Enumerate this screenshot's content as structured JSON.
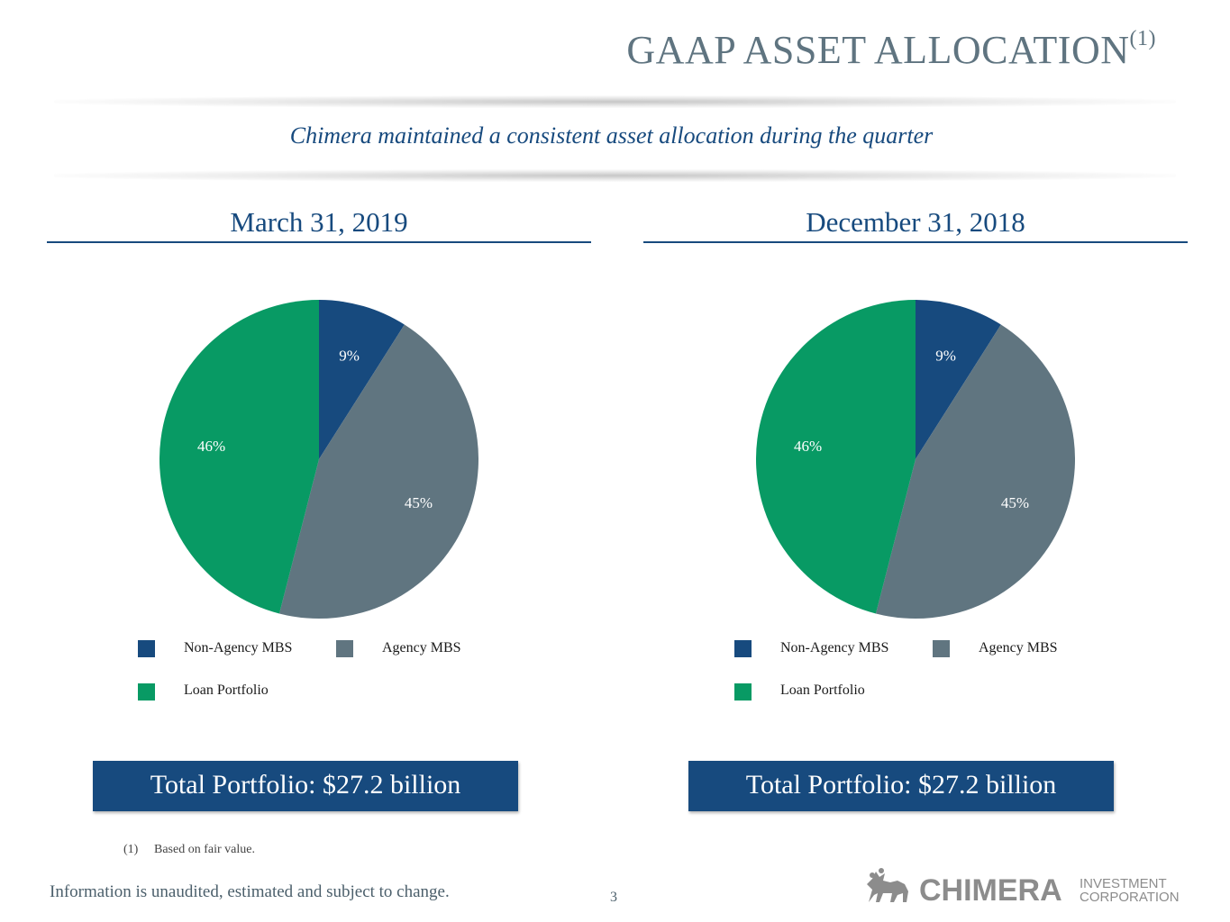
{
  "header": {
    "title": "GAAP ASSET ALLOCATION",
    "title_superscript": "(1)",
    "subtitle": "Chimera maintained a consistent asset allocation during the quarter"
  },
  "colors": {
    "non_agency_mbs": "#174a7e",
    "agency_mbs": "#607580",
    "loan_portfolio": "#089a64",
    "accent": "#174a7e"
  },
  "chart_data": [
    {
      "type": "pie",
      "title": "March 31, 2019",
      "categories": [
        "Non-Agency MBS",
        "Agency MBS",
        "Loan Portfolio"
      ],
      "values": [
        9,
        45,
        46
      ],
      "labels": [
        "9%",
        "45%",
        "46%"
      ],
      "legend_placement": "bottom",
      "total_label": "Total Portfolio: $27.2 billion"
    },
    {
      "type": "pie",
      "title": "December 31, 2018",
      "categories": [
        "Non-Agency MBS",
        "Agency MBS",
        "Loan Portfolio"
      ],
      "values": [
        9,
        45,
        46
      ],
      "labels": [
        "9%",
        "45%",
        "46%"
      ],
      "legend_placement": "bottom",
      "total_label": "Total Portfolio: $27.2 billion"
    }
  ],
  "footnote": {
    "number": "(1)",
    "text": "Based on fair value."
  },
  "footer": {
    "disclaimer": "Information is unaudited, estimated and subject to change.",
    "page_number": "3"
  },
  "logo": {
    "name": "CHIMERA",
    "line1": "INVESTMENT",
    "line2": "CORPORATION"
  }
}
